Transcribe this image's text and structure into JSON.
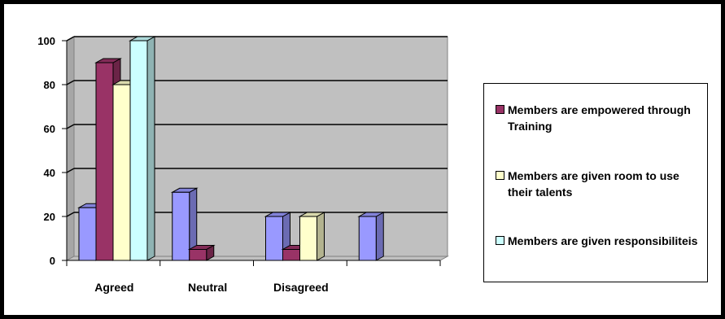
{
  "chart_data": {
    "type": "bar",
    "categories": [
      "Agreed",
      "Neutral",
      "Disagreed",
      ""
    ],
    "yticks": [
      "0",
      "20",
      "40",
      "60",
      "80",
      "100"
    ],
    "ylim": [
      0,
      100
    ],
    "grid": true,
    "legend_position": "right",
    "series": [
      {
        "name": "",
        "color": "#9999ff",
        "values": [
          24,
          31,
          20,
          20
        ]
      },
      {
        "name": "Members are empowered through Training",
        "color": "#993366",
        "values": [
          90,
          5,
          5,
          0
        ]
      },
      {
        "name": "Members are given room to use their talents",
        "color": "#ffffcc",
        "values": [
          80,
          0,
          20,
          0
        ]
      },
      {
        "name": "Members are given responsibiliteis",
        "color": "#ccffff",
        "values": [
          100,
          0,
          0,
          0
        ]
      }
    ]
  },
  "legend": {
    "items": [
      {
        "label": "Members are empowered through Training",
        "color": "#993366"
      },
      {
        "label": "Members are given room to use their talents",
        "color": "#ffffcc"
      },
      {
        "label": "Members are given responsibiliteis",
        "color": "#ccffff"
      }
    ]
  }
}
